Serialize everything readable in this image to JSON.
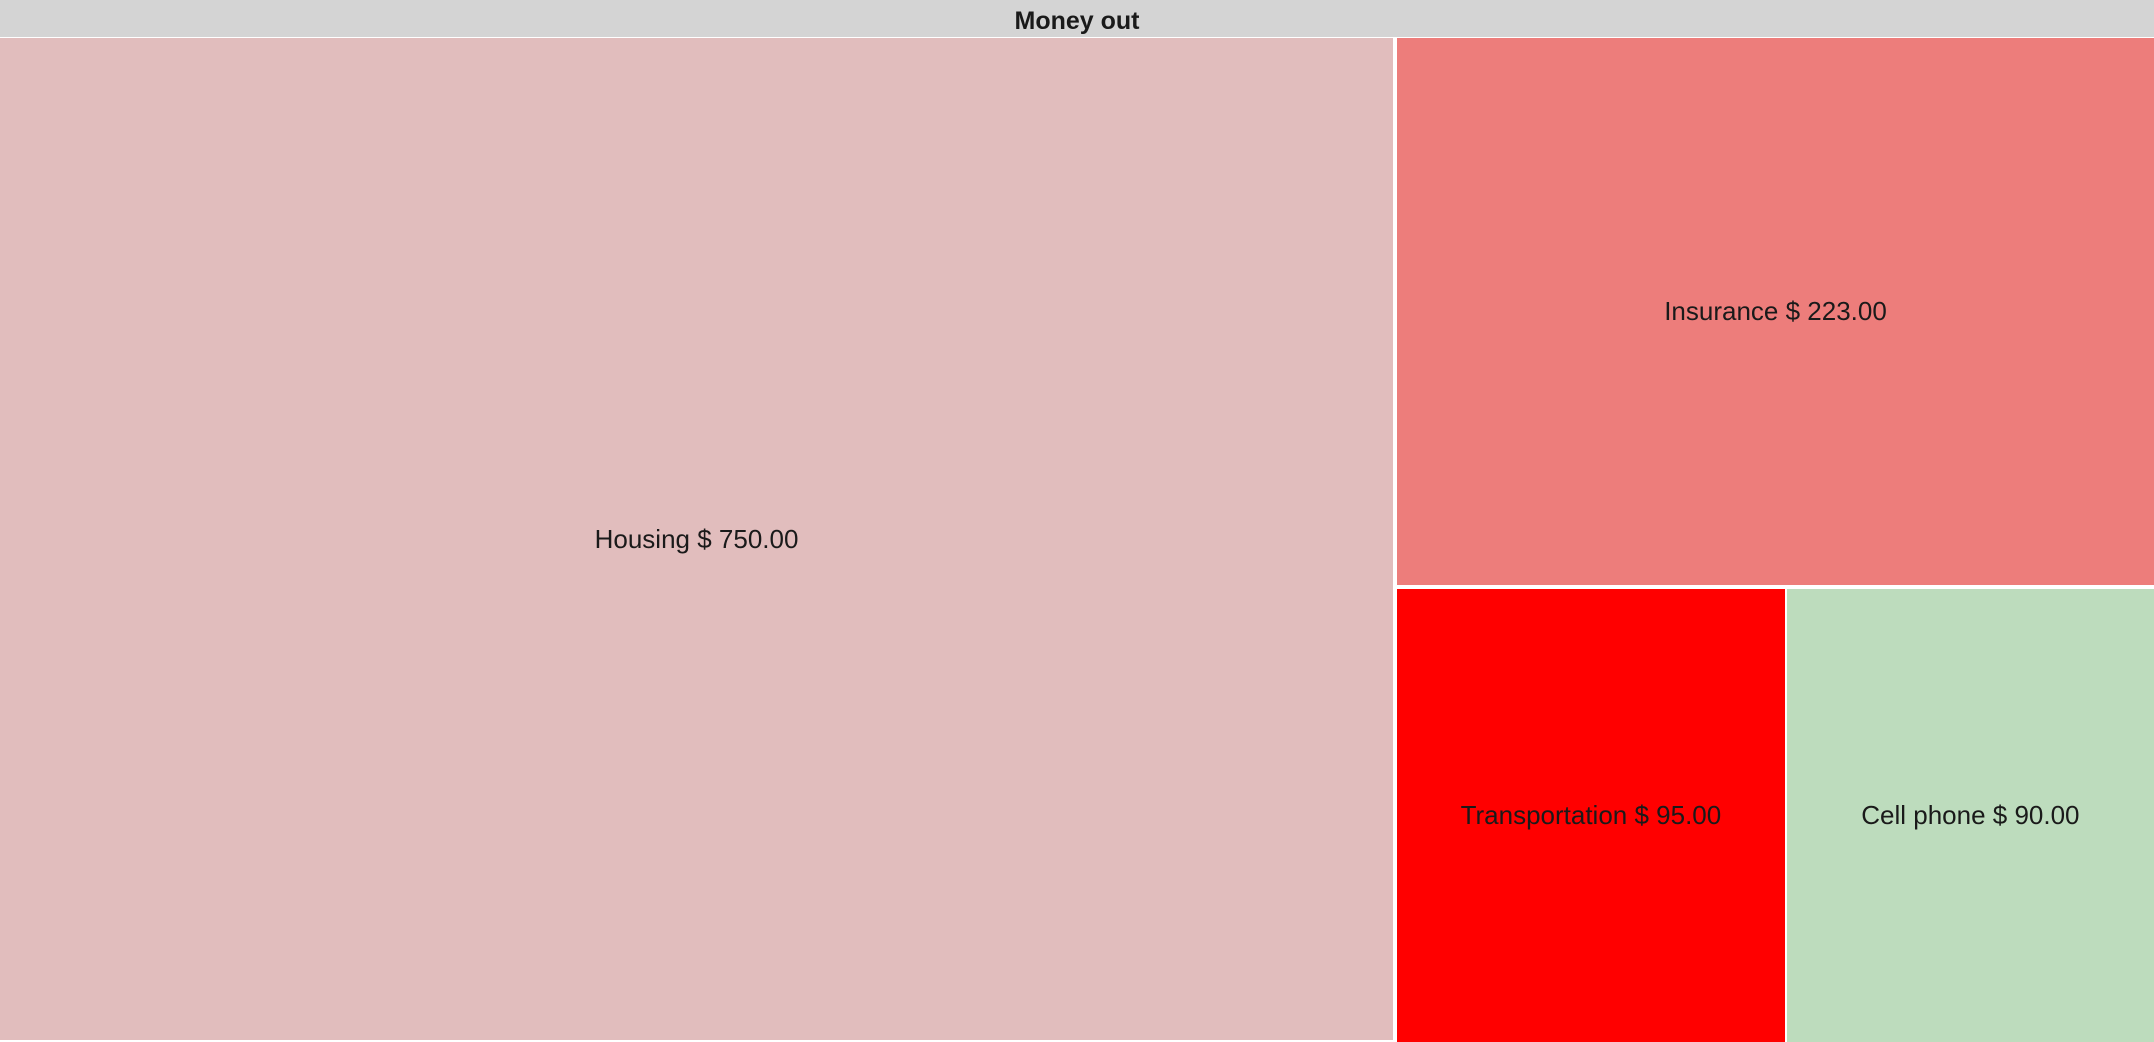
{
  "chart_data": {
    "type": "treemap",
    "title": "Money out",
    "currency_symbol": "$",
    "nodes": [
      {
        "label": "Housing",
        "value": 750.0,
        "value_text": "750.00",
        "color": "#e1bdbd"
      },
      {
        "label": "Insurance",
        "value": 223.0,
        "value_text": "223.00",
        "color": "#ed7d7b"
      },
      {
        "label": "Transportation",
        "value": 95.0,
        "value_text": "95.00",
        "color": "#ff0000"
      },
      {
        "label": "Cell phone",
        "value": 90.0,
        "value_text": "90.00",
        "color": "#bddcbd"
      }
    ]
  }
}
